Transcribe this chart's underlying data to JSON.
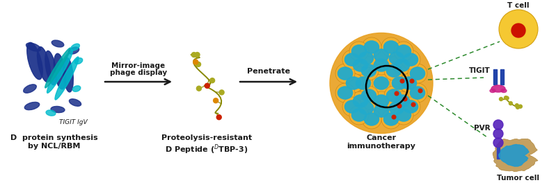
{
  "bg_color": "#ffffff",
  "fig_width": 7.99,
  "fig_height": 2.67,
  "dpi": 100,
  "arrow1_label_line1": "Mirror-image",
  "arrow1_label_line2": "phage display",
  "arrow2_label": "Penetrate",
  "label1_line1": "D  protein synthesis",
  "label1_line2": "by NCL/RBM",
  "label2_line1": "Proteolysis-resistant",
  "label2_line2_a": "D Peptide (",
  "label2_line2_b": "D",
  "label2_line2_c": "TBP-3)",
  "label3_line1": "Cancer",
  "label3_line2": "immunotherapy",
  "sublabel_tigit_igv": "TIGIT IgV",
  "sublabel_tigit": "TIGIT",
  "sublabel_pvr": "PVR",
  "sublabel_tcell": "T cell",
  "sublabel_tumorcell": "Tumor cell",
  "arrow_color": "#1a1a1a",
  "text_color": "#1a1a1a",
  "dashed_line_color": "#2d8a2d",
  "protein_blue_dark": "#1a2f8a",
  "protein_blue_mid": "#2244bb",
  "protein_cyan": "#00bbcc",
  "protein_teal": "#00aaaa",
  "peptide_yellow": "#aaaa22",
  "peptide_olive": "#888800",
  "peptide_red": "#cc2200",
  "peptide_orange": "#dd8800",
  "tumor_bg": "#e8a020",
  "cell_outer": "#f0b030",
  "cell_inner": "#22aacc",
  "cell_dot_red": "#cc2200",
  "tcell_yellow": "#f5c832",
  "tcell_dot": "#cc1100",
  "tcell_edge": "#d4a010",
  "tigit_blue": "#2244aa",
  "tigit_pink": "#cc2288",
  "pvr_purple": "#5522bb",
  "pvr_blue": "#3344bb",
  "tumorcell_outer": "#c4a060",
  "tumorcell_inner": "#2299cc",
  "tumorcell_edge": "#b08840"
}
